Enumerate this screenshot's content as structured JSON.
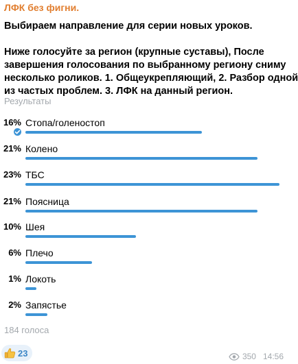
{
  "author": "ЛФК без фигни.",
  "question": "Выбираем направление для серии новых уроков.",
  "description_lines": [
    "Ниже голосуйте за регион (крупные суставы),  После",
    "завершения голосования по выбранному региону сниму",
    "несколько роликов.   1. Общеукрепляющий, 2. Разбор одной",
    "из частых проблем. 3. ЛФК на данный регион."
  ],
  "results_label": "Результаты",
  "options": [
    {
      "percent": "16%",
      "label": "Стопа/голеностоп",
      "value": 16,
      "chosen": true
    },
    {
      "percent": "21%",
      "label": "Колено",
      "value": 21,
      "chosen": false
    },
    {
      "percent": "23%",
      "label": "ТБС",
      "value": 23,
      "chosen": false
    },
    {
      "percent": "21%",
      "label": "Поясница",
      "value": 21,
      "chosen": false
    },
    {
      "percent": "10%",
      "label": "Шея",
      "value": 10,
      "chosen": false
    },
    {
      "percent": "6%",
      "label": "Плечо",
      "value": 6,
      "chosen": false
    },
    {
      "percent": "1%",
      "label": "Локоть",
      "value": 1,
      "chosen": false
    },
    {
      "percent": "2%",
      "label": "Запястье",
      "value": 2,
      "chosen": false
    }
  ],
  "total_votes": "184 голоса",
  "reaction": {
    "emoji": "thumbs-up-icon",
    "count": "23"
  },
  "meta": {
    "views": "350",
    "time": "14:56"
  },
  "colors": {
    "author": "#e17e2f",
    "bar": "#3d94d6",
    "muted": "#a3a8ad",
    "reaction_bg": "#e8f1fa"
  }
}
